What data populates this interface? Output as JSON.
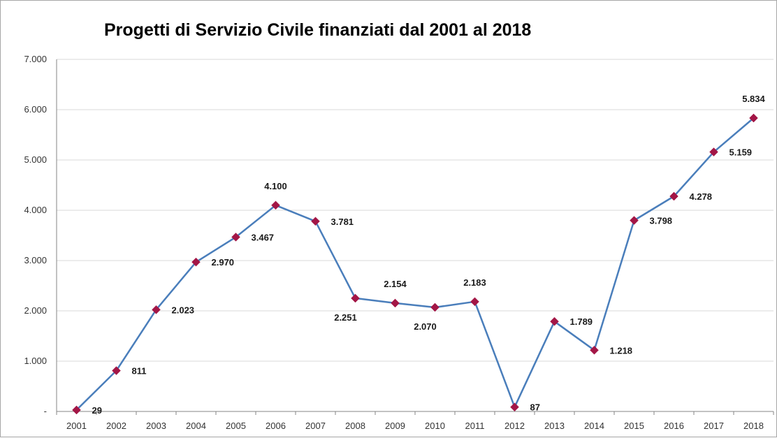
{
  "chart_data": {
    "type": "line",
    "title": "Progetti di Servizio Civile finanziati dal 2001 al 2018",
    "xlabel": "",
    "ylabel": "",
    "ylim": [
      0,
      7000
    ],
    "y_ticks": [
      {
        "value": 0,
        "label": "-"
      },
      {
        "value": 1000,
        "label": "1.000"
      },
      {
        "value": 2000,
        "label": "2.000"
      },
      {
        "value": 3000,
        "label": "3.000"
      },
      {
        "value": 4000,
        "label": "4.000"
      },
      {
        "value": 5000,
        "label": "5.000"
      },
      {
        "value": 6000,
        "label": "6.000"
      },
      {
        "value": 7000,
        "label": "7.000"
      }
    ],
    "categories": [
      "2001",
      "2002",
      "2003",
      "2004",
      "2005",
      "2006",
      "2007",
      "2008",
      "2009",
      "2010",
      "2011",
      "2012",
      "2013",
      "2014",
      "2015",
      "2016",
      "2017",
      "2018"
    ],
    "series": [
      {
        "values": [
          29,
          811,
          2023,
          2970,
          3467,
          4100,
          3781,
          2251,
          2154,
          2070,
          2183,
          87,
          1789,
          1218,
          3798,
          4278,
          5159,
          5834
        ],
        "data_labels": [
          "29",
          "811",
          "2.023",
          "2.970",
          "3.467",
          "4.100",
          "3.781",
          "2.251",
          "2.154",
          "2.070",
          "2.183",
          "87",
          "1.789",
          "1.218",
          "3.798",
          "4.278",
          "5.159",
          "5.834"
        ],
        "label_positions": [
          "right",
          "right",
          "right",
          "right",
          "right",
          "above",
          "right",
          "below",
          "above",
          "below",
          "above",
          "right",
          "right",
          "right",
          "right",
          "right",
          "right",
          "above"
        ],
        "line_color": "#4a7ebb",
        "marker_color": "#a31646",
        "marker": "diamond"
      }
    ],
    "grid": true,
    "legend": "none",
    "colors": {
      "gridline": "#d9d9d9",
      "axis": "#868686",
      "border": "#a6a6a6"
    }
  }
}
